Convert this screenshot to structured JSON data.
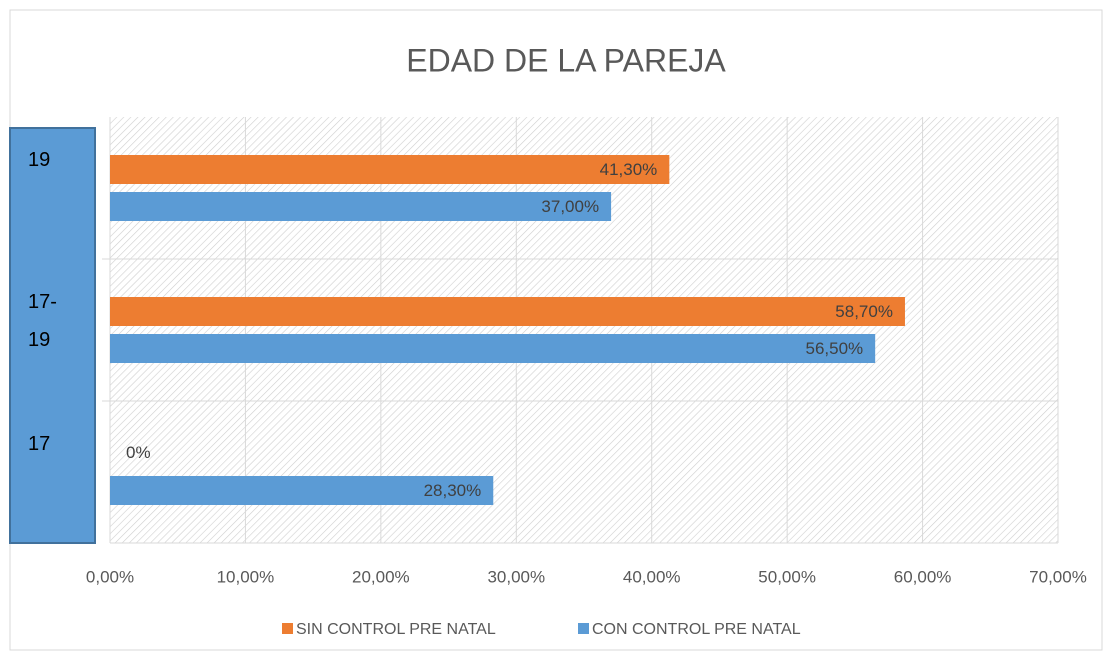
{
  "chart_data": {
    "type": "barh",
    "title": "EDAD DE LA PAREJA",
    "categories": [
      "17",
      "17-19",
      "19"
    ],
    "series": [
      {
        "name": "SIN CONTROL PRE NATAL",
        "color": "#ed7d31",
        "values": [
          0,
          58.7,
          41.3
        ],
        "value_labels": [
          "0%",
          "58,70%",
          "41,30%"
        ]
      },
      {
        "name": "CON CONTROL PRE NATAL",
        "color": "#5b9bd5",
        "values": [
          28.3,
          56.5,
          37.0
        ],
        "value_labels": [
          "28,30%",
          "56,50%",
          "37,00%"
        ]
      }
    ],
    "xlim": [
      0,
      70
    ],
    "xticks": [
      {
        "value": 0,
        "label": "0,00%"
      },
      {
        "value": 10,
        "label": "10,00%"
      },
      {
        "value": 20,
        "label": "20,00%"
      },
      {
        "value": 30,
        "label": "30,00%"
      },
      {
        "value": 40,
        "label": "40,00%"
      },
      {
        "value": 50,
        "label": "50,00%"
      },
      {
        "value": 60,
        "label": "60,00%"
      },
      {
        "value": 70,
        "label": "70,00%"
      }
    ],
    "grid": true,
    "legend": "bottom"
  }
}
